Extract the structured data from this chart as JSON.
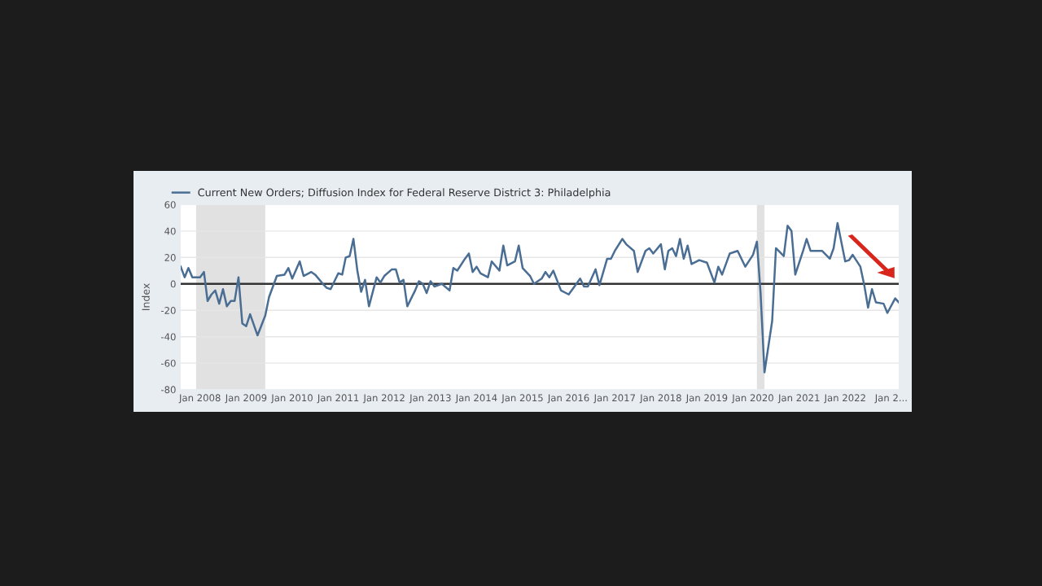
{
  "chart_data": {
    "type": "line",
    "ylabel": "Index",
    "legend": "top left",
    "grid": "y",
    "marker": "none",
    "line_style": "solid",
    "xlim": [
      "2007-08",
      "2023-03"
    ],
    "ylim": [
      -80,
      60
    ],
    "yticks": [
      -80,
      -60,
      -40,
      -20,
      0,
      20,
      40,
      60
    ],
    "xticks": [
      {
        "value": "2008-01",
        "label": "Jan 2008"
      },
      {
        "value": "2009-01",
        "label": "Jan 2009"
      },
      {
        "value": "2010-01",
        "label": "Jan 2010"
      },
      {
        "value": "2011-01",
        "label": "Jan 2011"
      },
      {
        "value": "2012-01",
        "label": "Jan 2012"
      },
      {
        "value": "2013-01",
        "label": "Jan 2013"
      },
      {
        "value": "2014-01",
        "label": "Jan 2014"
      },
      {
        "value": "2015-01",
        "label": "Jan 2015"
      },
      {
        "value": "2016-01",
        "label": "Jan 2016"
      },
      {
        "value": "2017-01",
        "label": "Jan 2017"
      },
      {
        "value": "2018-01",
        "label": "Jan 2018"
      },
      {
        "value": "2019-01",
        "label": "Jan 2019"
      },
      {
        "value": "2020-01",
        "label": "Jan 2020"
      },
      {
        "value": "2021-01",
        "label": "Jan 2021"
      },
      {
        "value": "2022-01",
        "label": "Jan 2022"
      },
      {
        "value": "2023-01",
        "label": "Jan 2..."
      }
    ],
    "ref_lines": [
      {
        "axis": "y",
        "value": 0,
        "label": null,
        "color": "#333333",
        "line_style": "solid"
      }
    ],
    "bands": [
      {
        "axis": "x",
        "from": "2007-12",
        "to": "2009-06",
        "label": null,
        "color": "#e1e1e1"
      },
      {
        "axis": "x",
        "from": "2020-02",
        "to": "2020-04",
        "label": null,
        "color": "#e1e1e1"
      }
    ],
    "series": [
      {
        "name": "Current New Orders; Diffusion Index for Federal Reserve District 3: Philadelphia",
        "color": "#4a6d94",
        "x": [
          "2007-08",
          "2007-09",
          "2007-10",
          "2007-11",
          "2008-01",
          "2008-02",
          "2008-03",
          "2008-04",
          "2008-05",
          "2008-06",
          "2008-07",
          "2008-08",
          "2008-09",
          "2008-10",
          "2008-11",
          "2008-12",
          "2009-01",
          "2009-02",
          "2009-04",
          "2009-06",
          "2009-07",
          "2009-09",
          "2009-11",
          "2009-12",
          "2010-01",
          "2010-03",
          "2010-04",
          "2010-06",
          "2010-07",
          "2010-09",
          "2010-10",
          "2010-11",
          "2011-01",
          "2011-02",
          "2011-03",
          "2011-04",
          "2011-05",
          "2011-06",
          "2011-07",
          "2011-08",
          "2011-09",
          "2011-11",
          "2011-12",
          "2012-01",
          "2012-03",
          "2012-04",
          "2012-05",
          "2012-06",
          "2012-07",
          "2012-09",
          "2012-10",
          "2012-11",
          "2012-12",
          "2013-01",
          "2013-02",
          "2013-04",
          "2013-06",
          "2013-07",
          "2013-08",
          "2013-10",
          "2013-11",
          "2013-12",
          "2014-01",
          "2014-02",
          "2014-04",
          "2014-05",
          "2014-07",
          "2014-08",
          "2014-09",
          "2014-11",
          "2014-12",
          "2015-01",
          "2015-03",
          "2015-04",
          "2015-06",
          "2015-07",
          "2015-08",
          "2015-09",
          "2015-11",
          "2016-01",
          "2016-02",
          "2016-04",
          "2016-05",
          "2016-06",
          "2016-08",
          "2016-09",
          "2016-11",
          "2016-12",
          "2017-01",
          "2017-03",
          "2017-04",
          "2017-06",
          "2017-07",
          "2017-09",
          "2017-10",
          "2017-11",
          "2018-01",
          "2018-02",
          "2018-03",
          "2018-04",
          "2018-05",
          "2018-06",
          "2018-07",
          "2018-08",
          "2018-09",
          "2018-11",
          "2019-01",
          "2019-03",
          "2019-04",
          "2019-05",
          "2019-07",
          "2019-09",
          "2019-11",
          "2020-01",
          "2020-02",
          "2020-03",
          "2020-04",
          "2020-06",
          "2020-07",
          "2020-09",
          "2020-10",
          "2020-11",
          "2020-12",
          "2021-02",
          "2021-03",
          "2021-04",
          "2021-06",
          "2021-07",
          "2021-09",
          "2021-10",
          "2021-11",
          "2022-01",
          "2022-02",
          "2022-03",
          "2022-05",
          "2022-06",
          "2022-07",
          "2022-08",
          "2022-09",
          "2022-11",
          "2022-12",
          "2023-02",
          "2023-03"
        ],
        "values": [
          13,
          5,
          12,
          5,
          5,
          9,
          -13,
          -8,
          -5,
          -15,
          -4,
          -17,
          -13,
          -13,
          5,
          -30,
          -32,
          -23,
          -39,
          -24,
          -10,
          6,
          7,
          12,
          4,
          17,
          6,
          9,
          7,
          0,
          -3,
          -4,
          8,
          7,
          20,
          21,
          34,
          10,
          -6,
          3,
          -17,
          5,
          1,
          6,
          11,
          11,
          1,
          3,
          -17,
          -5,
          2,
          0,
          -7,
          2,
          -2,
          0,
          -5,
          12,
          10,
          19,
          23,
          9,
          13,
          8,
          5,
          17,
          10,
          29,
          14,
          17,
          29,
          12,
          6,
          0,
          4,
          9,
          5,
          10,
          -5,
          -8,
          -4,
          4,
          -2,
          -2,
          11,
          -1,
          19,
          19,
          25,
          34,
          30,
          25,
          9,
          25,
          27,
          23,
          30,
          11,
          25,
          27,
          21,
          34,
          19,
          29,
          15,
          18,
          16,
          1,
          13,
          7,
          23,
          25,
          13,
          22,
          32,
          -7,
          -67,
          -28,
          27,
          21,
          44,
          40,
          7,
          25,
          34,
          25,
          25,
          25,
          19,
          27,
          46,
          17,
          18,
          22,
          13,
          -1,
          -18,
          -4,
          -14,
          -15,
          -22,
          -11,
          -14
        ]
      }
    ]
  }
}
